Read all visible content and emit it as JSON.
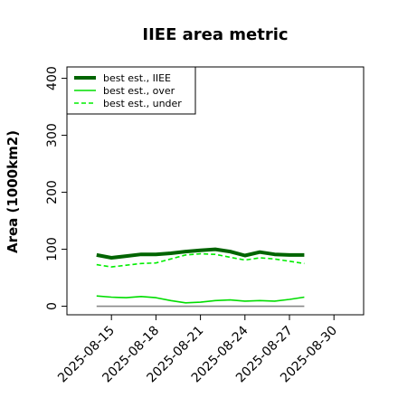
{
  "chart_data": {
    "type": "line",
    "title": "IIEE area metric",
    "xlabel": "",
    "ylabel": "Area (1000km2)",
    "ylim": [
      -15,
      420
    ],
    "yticks": [
      0,
      100,
      200,
      300,
      400
    ],
    "xlim": [
      "2025-08-12",
      "2025-09-01"
    ],
    "xticks": [
      "2025-08-15",
      "2025-08-18",
      "2025-08-21",
      "2025-08-24",
      "2025-08-27",
      "2025-08-30"
    ],
    "legend_position": "top-left",
    "grid": false,
    "x": [
      "2025-08-14",
      "2025-08-15",
      "2025-08-16",
      "2025-08-17",
      "2025-08-18",
      "2025-08-19",
      "2025-08-20",
      "2025-08-21",
      "2025-08-22",
      "2025-08-23",
      "2025-08-24",
      "2025-08-25",
      "2025-08-26",
      "2025-08-27",
      "2025-08-28"
    ],
    "series": [
      {
        "name": "best est., IIEE",
        "color": "#006400",
        "style": "solid",
        "width": "thick",
        "values": [
          90,
          85,
          88,
          91,
          91,
          93,
          96,
          98,
          100,
          96,
          89,
          95,
          91,
          90,
          90
        ]
      },
      {
        "name": "best est., over",
        "color": "#00dd00",
        "style": "solid",
        "width": "normal",
        "values": [
          18,
          16,
          15,
          17,
          15,
          10,
          6,
          7,
          10,
          11,
          9,
          10,
          9,
          12,
          16
        ]
      },
      {
        "name": "best est., under",
        "color": "#00ee00",
        "style": "dashed",
        "width": "normal",
        "values": [
          73,
          69,
          72,
          75,
          76,
          83,
          90,
          92,
          91,
          86,
          81,
          85,
          83,
          79,
          75
        ]
      },
      {
        "name": "",
        "color": "#888888",
        "style": "solid",
        "width": "normal",
        "values": [
          0,
          0,
          0,
          0,
          0,
          0,
          0,
          0,
          0,
          0,
          0,
          0,
          0,
          0,
          0
        ]
      }
    ]
  }
}
